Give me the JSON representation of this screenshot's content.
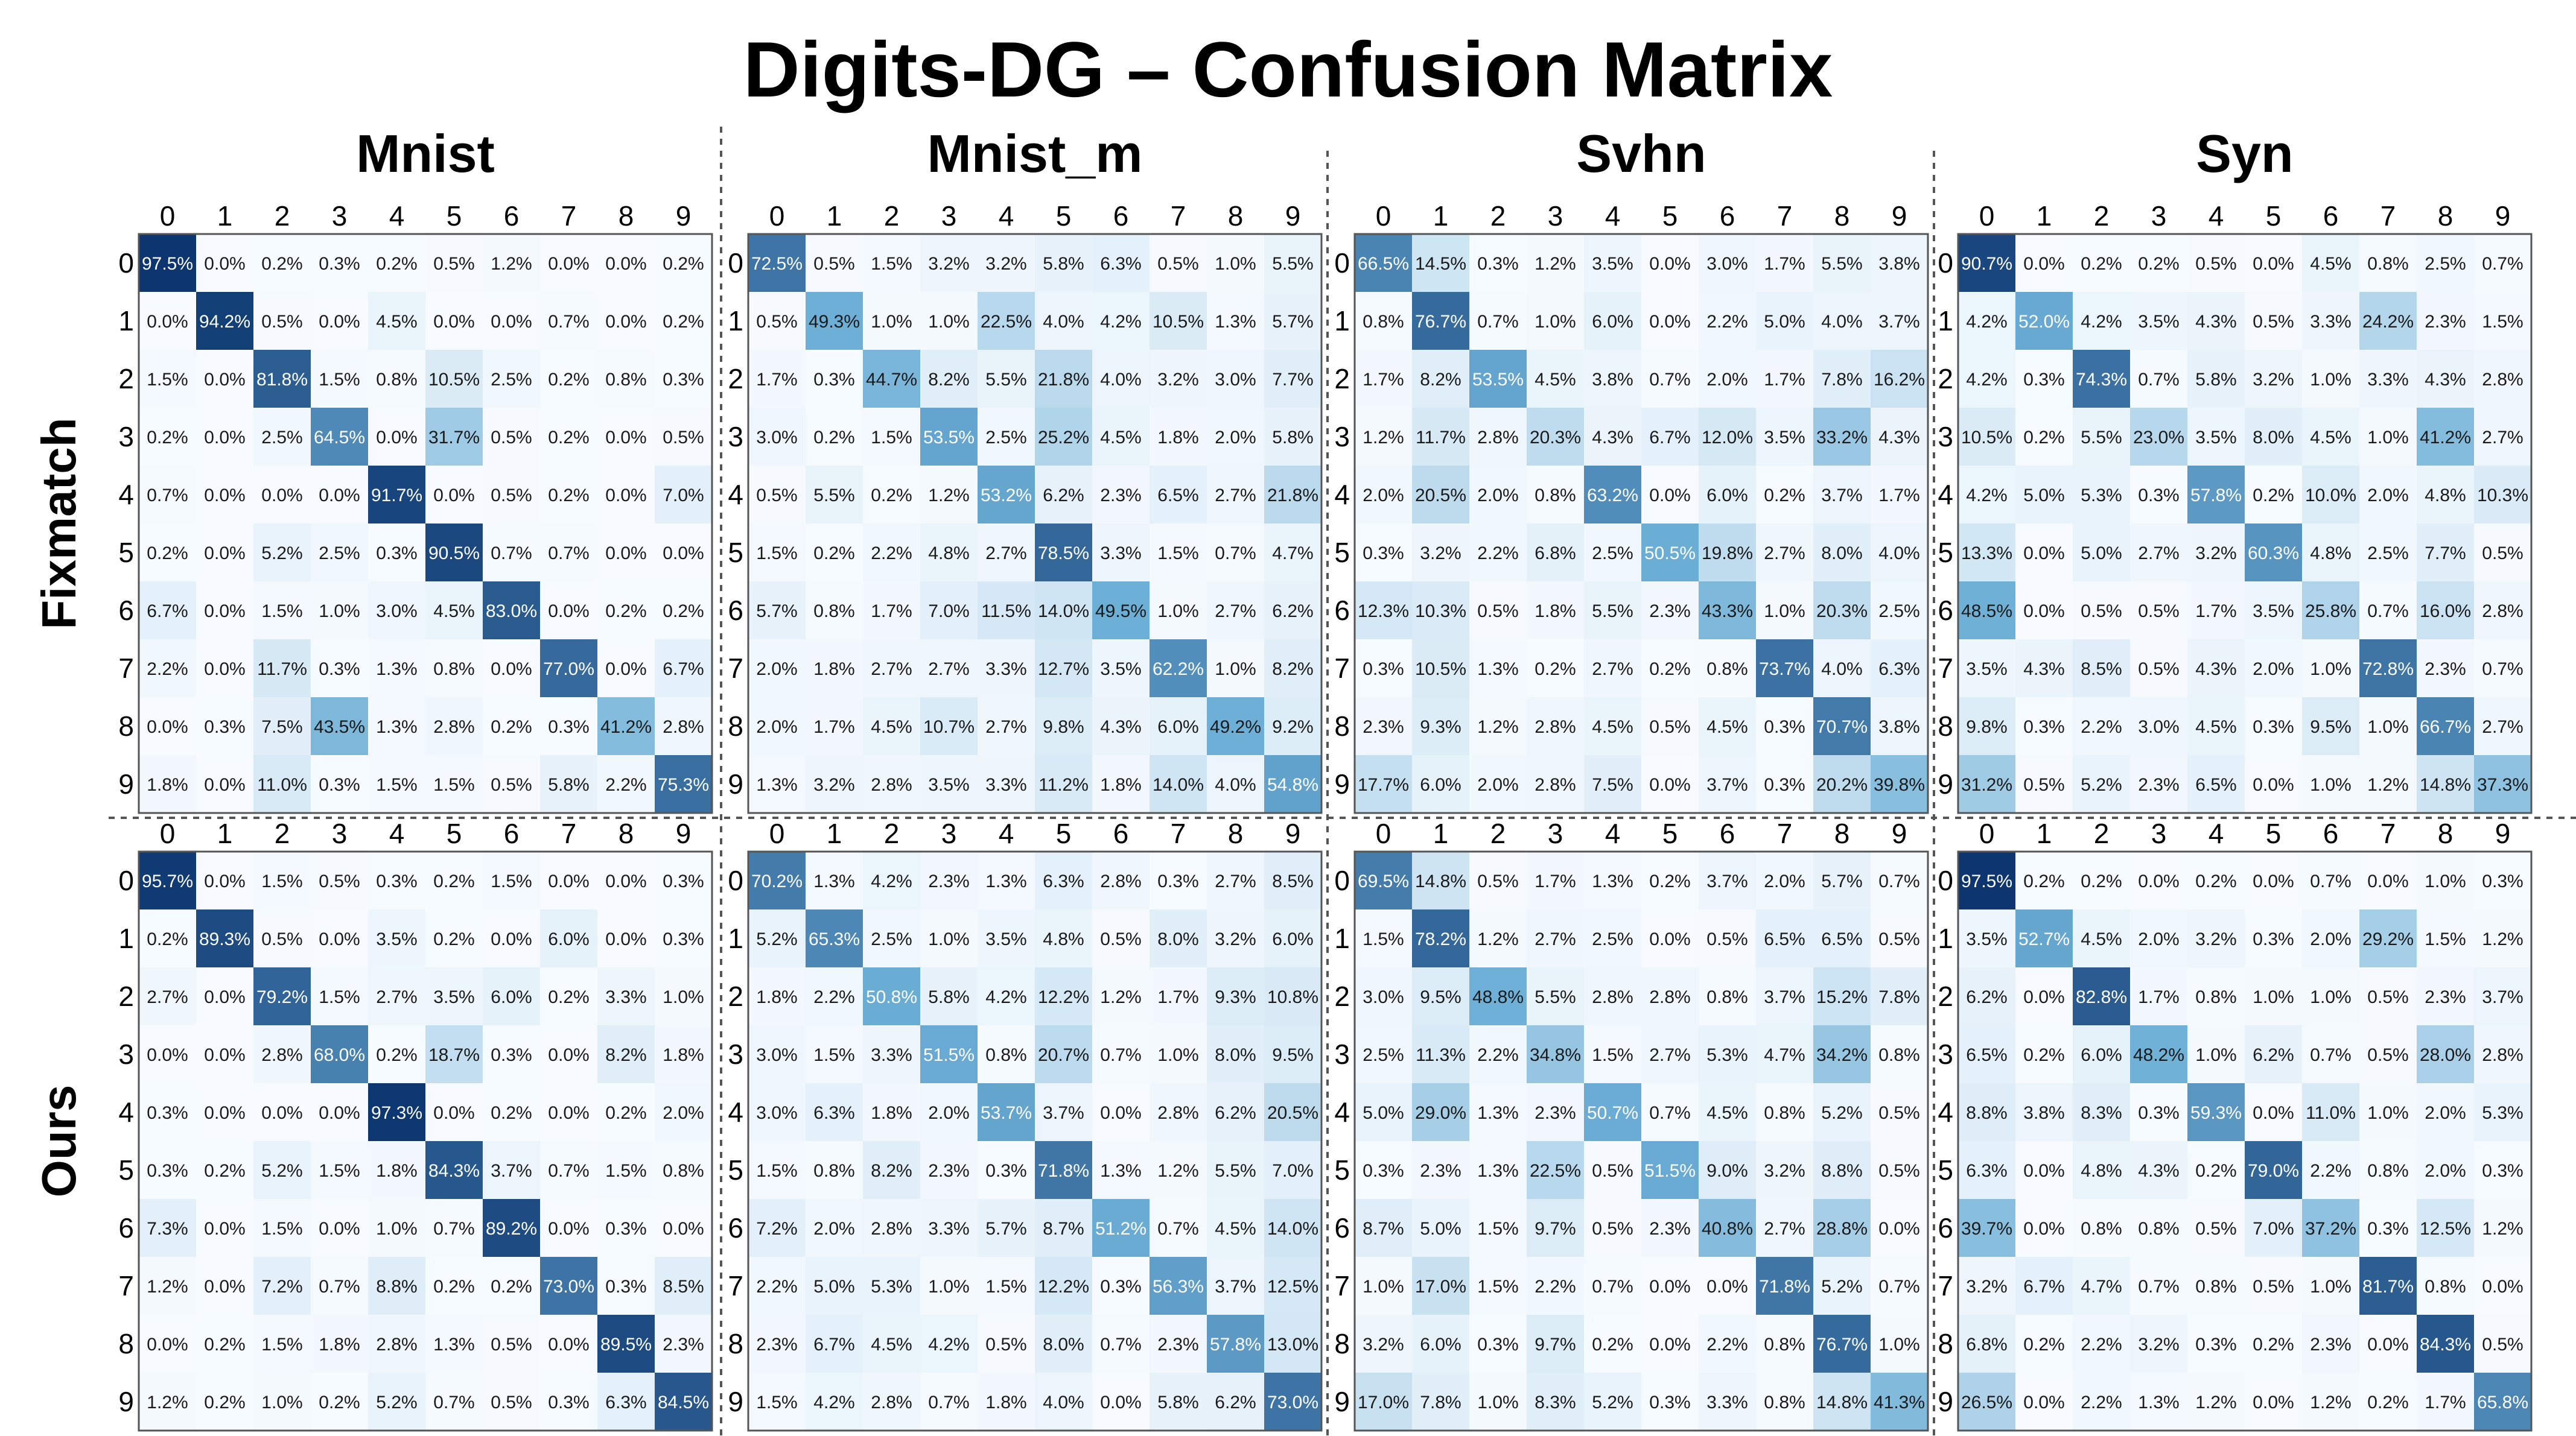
{
  "title": "Digits-DG  –  Confusion Matrix",
  "colormap": {
    "low": "#f7fbff",
    "mid": "#6baed6",
    "high": "#08306b"
  },
  "tick_labels": [
    "0",
    "1",
    "2",
    "3",
    "4",
    "5",
    "6",
    "7",
    "8",
    "9"
  ],
  "row_labels": [
    "Fixmatch",
    "Ours"
  ],
  "column_titles": [
    "Mnist",
    "Mnist_m",
    "Svhn",
    "Syn"
  ],
  "chart_data": [
    {
      "type": "heatmap",
      "method": "Fixmatch",
      "domain": "Mnist",
      "xticks": [
        "0",
        "1",
        "2",
        "3",
        "4",
        "5",
        "6",
        "7",
        "8",
        "9"
      ],
      "yticks": [
        "0",
        "1",
        "2",
        "3",
        "4",
        "5",
        "6",
        "7",
        "8",
        "9"
      ],
      "values": [
        [
          "97.5%",
          "0.0%",
          "0.2%",
          "0.3%",
          "0.2%",
          "0.5%",
          "1.2%",
          "0.0%",
          "0.0%",
          "0.2%"
        ],
        [
          "0.0%",
          "94.2%",
          "0.5%",
          "0.0%",
          "4.5%",
          "0.0%",
          "0.0%",
          "0.7%",
          "0.0%",
          "0.2%"
        ],
        [
          "1.5%",
          "0.0%",
          "81.8%",
          "1.5%",
          "0.8%",
          "10.5%",
          "2.5%",
          "0.2%",
          "0.8%",
          "0.3%"
        ],
        [
          "0.2%",
          "0.0%",
          "2.5%",
          "64.5%",
          "0.0%",
          "31.7%",
          "0.5%",
          "0.2%",
          "0.0%",
          "0.5%"
        ],
        [
          "0.7%",
          "0.0%",
          "0.0%",
          "0.0%",
          "91.7%",
          "0.0%",
          "0.5%",
          "0.2%",
          "0.0%",
          "7.0%"
        ],
        [
          "0.2%",
          "0.0%",
          "5.2%",
          "2.5%",
          "0.3%",
          "90.5%",
          "0.7%",
          "0.7%",
          "0.0%",
          "0.0%"
        ],
        [
          "6.7%",
          "0.0%",
          "1.5%",
          "1.0%",
          "3.0%",
          "4.5%",
          "83.0%",
          "0.0%",
          "0.2%",
          "0.2%"
        ],
        [
          "2.2%",
          "0.0%",
          "11.7%",
          "0.3%",
          "1.3%",
          "0.8%",
          "0.0%",
          "77.0%",
          "0.0%",
          "6.7%"
        ],
        [
          "0.0%",
          "0.3%",
          "7.5%",
          "43.5%",
          "1.3%",
          "2.8%",
          "0.2%",
          "0.3%",
          "41.2%",
          "2.8%"
        ],
        [
          "1.8%",
          "0.0%",
          "11.0%",
          "0.3%",
          "1.5%",
          "1.5%",
          "0.5%",
          "5.8%",
          "2.2%",
          "75.3%"
        ]
      ]
    },
    {
      "type": "heatmap",
      "method": "Fixmatch",
      "domain": "Mnist_m",
      "xticks": [
        "0",
        "1",
        "2",
        "3",
        "4",
        "5",
        "6",
        "7",
        "8",
        "9"
      ],
      "yticks": [
        "0",
        "1",
        "2",
        "3",
        "4",
        "5",
        "6",
        "7",
        "8",
        "9"
      ],
      "values": [
        [
          "72.5%",
          "0.5%",
          "1.5%",
          "3.2%",
          "3.2%",
          "5.8%",
          "6.3%",
          "0.5%",
          "1.0%",
          "5.5%"
        ],
        [
          "0.5%",
          "49.3%",
          "1.0%",
          "1.0%",
          "22.5%",
          "4.0%",
          "4.2%",
          "10.5%",
          "1.3%",
          "5.7%"
        ],
        [
          "1.7%",
          "0.3%",
          "44.7%",
          "8.2%",
          "5.5%",
          "21.8%",
          "4.0%",
          "3.2%",
          "3.0%",
          "7.7%"
        ],
        [
          "3.0%",
          "0.2%",
          "1.5%",
          "53.5%",
          "2.5%",
          "25.2%",
          "4.5%",
          "1.8%",
          "2.0%",
          "5.8%"
        ],
        [
          "0.5%",
          "5.5%",
          "0.2%",
          "1.2%",
          "53.2%",
          "6.2%",
          "2.3%",
          "6.5%",
          "2.7%",
          "21.8%"
        ],
        [
          "1.5%",
          "0.2%",
          "2.2%",
          "4.8%",
          "2.7%",
          "78.5%",
          "3.3%",
          "1.5%",
          "0.7%",
          "4.7%"
        ],
        [
          "5.7%",
          "0.8%",
          "1.7%",
          "7.0%",
          "11.5%",
          "14.0%",
          "49.5%",
          "1.0%",
          "2.7%",
          "6.2%"
        ],
        [
          "2.0%",
          "1.8%",
          "2.7%",
          "2.7%",
          "3.3%",
          "12.7%",
          "3.5%",
          "62.2%",
          "1.0%",
          "8.2%"
        ],
        [
          "2.0%",
          "1.7%",
          "4.5%",
          "10.7%",
          "2.7%",
          "9.8%",
          "4.3%",
          "6.0%",
          "49.2%",
          "9.2%"
        ],
        [
          "1.3%",
          "3.2%",
          "2.8%",
          "3.5%",
          "3.3%",
          "11.2%",
          "1.8%",
          "14.0%",
          "4.0%",
          "54.8%"
        ]
      ]
    },
    {
      "type": "heatmap",
      "method": "Fixmatch",
      "domain": "Svhn",
      "xticks": [
        "0",
        "1",
        "2",
        "3",
        "4",
        "5",
        "6",
        "7",
        "8",
        "9"
      ],
      "yticks": [
        "0",
        "1",
        "2",
        "3",
        "4",
        "5",
        "6",
        "7",
        "8",
        "9"
      ],
      "values": [
        [
          "66.5%",
          "14.5%",
          "0.3%",
          "1.2%",
          "3.5%",
          "0.0%",
          "3.0%",
          "1.7%",
          "5.5%",
          "3.8%"
        ],
        [
          "0.8%",
          "76.7%",
          "0.7%",
          "1.0%",
          "6.0%",
          "0.0%",
          "2.2%",
          "5.0%",
          "4.0%",
          "3.7%"
        ],
        [
          "1.7%",
          "8.2%",
          "53.5%",
          "4.5%",
          "3.8%",
          "0.7%",
          "2.0%",
          "1.7%",
          "7.8%",
          "16.2%"
        ],
        [
          "1.2%",
          "11.7%",
          "2.8%",
          "20.3%",
          "4.3%",
          "6.7%",
          "12.0%",
          "3.5%",
          "33.2%",
          "4.3%"
        ],
        [
          "2.0%",
          "20.5%",
          "2.0%",
          "0.8%",
          "63.2%",
          "0.0%",
          "6.0%",
          "0.2%",
          "3.7%",
          "1.7%"
        ],
        [
          "0.3%",
          "3.2%",
          "2.2%",
          "6.8%",
          "2.5%",
          "50.5%",
          "19.8%",
          "2.7%",
          "8.0%",
          "4.0%"
        ],
        [
          "12.3%",
          "10.3%",
          "0.5%",
          "1.8%",
          "5.5%",
          "2.3%",
          "43.3%",
          "1.0%",
          "20.3%",
          "2.5%"
        ],
        [
          "0.3%",
          "10.5%",
          "1.3%",
          "0.2%",
          "2.7%",
          "0.2%",
          "0.8%",
          "73.7%",
          "4.0%",
          "6.3%"
        ],
        [
          "2.3%",
          "9.3%",
          "1.2%",
          "2.8%",
          "4.5%",
          "0.5%",
          "4.5%",
          "0.3%",
          "70.7%",
          "3.8%"
        ],
        [
          "17.7%",
          "6.0%",
          "2.0%",
          "2.8%",
          "7.5%",
          "0.0%",
          "3.7%",
          "0.3%",
          "20.2%",
          "39.8%"
        ]
      ]
    },
    {
      "type": "heatmap",
      "method": "Fixmatch",
      "domain": "Syn",
      "xticks": [
        "0",
        "1",
        "2",
        "3",
        "4",
        "5",
        "6",
        "7",
        "8",
        "9"
      ],
      "yticks": [
        "0",
        "1",
        "2",
        "3",
        "4",
        "5",
        "6",
        "7",
        "8",
        "9"
      ],
      "values": [
        [
          "90.7%",
          "0.0%",
          "0.2%",
          "0.2%",
          "0.5%",
          "0.0%",
          "4.5%",
          "0.8%",
          "2.5%",
          "0.7%"
        ],
        [
          "4.2%",
          "52.0%",
          "4.2%",
          "3.5%",
          "4.3%",
          "0.5%",
          "3.3%",
          "24.2%",
          "2.3%",
          "1.5%"
        ],
        [
          "4.2%",
          "0.3%",
          "74.3%",
          "0.7%",
          "5.8%",
          "3.2%",
          "1.0%",
          "3.3%",
          "4.3%",
          "2.8%"
        ],
        [
          "10.5%",
          "0.2%",
          "5.5%",
          "23.0%",
          "3.5%",
          "8.0%",
          "4.5%",
          "1.0%",
          "41.2%",
          "2.7%"
        ],
        [
          "4.2%",
          "5.0%",
          "5.3%",
          "0.3%",
          "57.8%",
          "0.2%",
          "10.0%",
          "2.0%",
          "4.8%",
          "10.3%"
        ],
        [
          "13.3%",
          "0.0%",
          "5.0%",
          "2.7%",
          "3.2%",
          "60.3%",
          "4.8%",
          "2.5%",
          "7.7%",
          "0.5%"
        ],
        [
          "48.5%",
          "0.0%",
          "0.5%",
          "0.5%",
          "1.7%",
          "3.5%",
          "25.8%",
          "0.7%",
          "16.0%",
          "2.8%"
        ],
        [
          "3.5%",
          "4.3%",
          "8.5%",
          "0.5%",
          "4.3%",
          "2.0%",
          "1.0%",
          "72.8%",
          "2.3%",
          "0.7%"
        ],
        [
          "9.8%",
          "0.3%",
          "2.2%",
          "3.0%",
          "4.5%",
          "0.3%",
          "9.5%",
          "1.0%",
          "66.7%",
          "2.7%"
        ],
        [
          "31.2%",
          "0.5%",
          "5.2%",
          "2.3%",
          "6.5%",
          "0.0%",
          "1.0%",
          "1.2%",
          "14.8%",
          "37.3%"
        ]
      ]
    },
    {
      "type": "heatmap",
      "method": "Ours",
      "domain": "Mnist",
      "xticks": [
        "0",
        "1",
        "2",
        "3",
        "4",
        "5",
        "6",
        "7",
        "8",
        "9"
      ],
      "yticks": [
        "0",
        "1",
        "2",
        "3",
        "4",
        "5",
        "6",
        "7",
        "8",
        "9"
      ],
      "values": [
        [
          "95.7%",
          "0.0%",
          "1.5%",
          "0.5%",
          "0.3%",
          "0.2%",
          "1.5%",
          "0.0%",
          "0.0%",
          "0.3%"
        ],
        [
          "0.2%",
          "89.3%",
          "0.5%",
          "0.0%",
          "3.5%",
          "0.2%",
          "0.0%",
          "6.0%",
          "0.0%",
          "0.3%"
        ],
        [
          "2.7%",
          "0.0%",
          "79.2%",
          "1.5%",
          "2.7%",
          "3.5%",
          "6.0%",
          "0.2%",
          "3.3%",
          "1.0%"
        ],
        [
          "0.0%",
          "0.0%",
          "2.8%",
          "68.0%",
          "0.2%",
          "18.7%",
          "0.3%",
          "0.0%",
          "8.2%",
          "1.8%"
        ],
        [
          "0.3%",
          "0.0%",
          "0.0%",
          "0.0%",
          "97.3%",
          "0.0%",
          "0.2%",
          "0.0%",
          "0.2%",
          "2.0%"
        ],
        [
          "0.3%",
          "0.2%",
          "5.2%",
          "1.5%",
          "1.8%",
          "84.3%",
          "3.7%",
          "0.7%",
          "1.5%",
          "0.8%"
        ],
        [
          "7.3%",
          "0.0%",
          "1.5%",
          "0.0%",
          "1.0%",
          "0.7%",
          "89.2%",
          "0.0%",
          "0.3%",
          "0.0%"
        ],
        [
          "1.2%",
          "0.0%",
          "7.2%",
          "0.7%",
          "8.8%",
          "0.2%",
          "0.2%",
          "73.0%",
          "0.3%",
          "8.5%"
        ],
        [
          "0.0%",
          "0.2%",
          "1.5%",
          "1.8%",
          "2.8%",
          "1.3%",
          "0.5%",
          "0.0%",
          "89.5%",
          "2.3%"
        ],
        [
          "1.2%",
          "0.2%",
          "1.0%",
          "0.2%",
          "5.2%",
          "0.7%",
          "0.5%",
          "0.3%",
          "6.3%",
          "84.5%"
        ]
      ]
    },
    {
      "type": "heatmap",
      "method": "Ours",
      "domain": "Mnist_m",
      "xticks": [
        "0",
        "1",
        "2",
        "3",
        "4",
        "5",
        "6",
        "7",
        "8",
        "9"
      ],
      "yticks": [
        "0",
        "1",
        "2",
        "3",
        "4",
        "5",
        "6",
        "7",
        "8",
        "9"
      ],
      "values": [
        [
          "70.2%",
          "1.3%",
          "4.2%",
          "2.3%",
          "1.3%",
          "6.3%",
          "2.8%",
          "0.3%",
          "2.7%",
          "8.5%"
        ],
        [
          "5.2%",
          "65.3%",
          "2.5%",
          "1.0%",
          "3.5%",
          "4.8%",
          "0.5%",
          "8.0%",
          "3.2%",
          "6.0%"
        ],
        [
          "1.8%",
          "2.2%",
          "50.8%",
          "5.8%",
          "4.2%",
          "12.2%",
          "1.2%",
          "1.7%",
          "9.3%",
          "10.8%"
        ],
        [
          "3.0%",
          "1.5%",
          "3.3%",
          "51.5%",
          "0.8%",
          "20.7%",
          "0.7%",
          "1.0%",
          "8.0%",
          "9.5%"
        ],
        [
          "3.0%",
          "6.3%",
          "1.8%",
          "2.0%",
          "53.7%",
          "3.7%",
          "0.0%",
          "2.8%",
          "6.2%",
          "20.5%"
        ],
        [
          "1.5%",
          "0.8%",
          "8.2%",
          "2.3%",
          "0.3%",
          "71.8%",
          "1.3%",
          "1.2%",
          "5.5%",
          "7.0%"
        ],
        [
          "7.2%",
          "2.0%",
          "2.8%",
          "3.3%",
          "5.7%",
          "8.7%",
          "51.2%",
          "0.7%",
          "4.5%",
          "14.0%"
        ],
        [
          "2.2%",
          "5.0%",
          "5.3%",
          "1.0%",
          "1.5%",
          "12.2%",
          "0.3%",
          "56.3%",
          "3.7%",
          "12.5%"
        ],
        [
          "2.3%",
          "6.7%",
          "4.5%",
          "4.2%",
          "0.5%",
          "8.0%",
          "0.7%",
          "2.3%",
          "57.8%",
          "13.0%"
        ],
        [
          "1.5%",
          "4.2%",
          "2.8%",
          "0.7%",
          "1.8%",
          "4.0%",
          "0.0%",
          "5.8%",
          "6.2%",
          "73.0%"
        ]
      ]
    },
    {
      "type": "heatmap",
      "method": "Ours",
      "domain": "Svhn",
      "xticks": [
        "0",
        "1",
        "2",
        "3",
        "4",
        "5",
        "6",
        "7",
        "8",
        "9"
      ],
      "yticks": [
        "0",
        "1",
        "2",
        "3",
        "4",
        "5",
        "6",
        "7",
        "8",
        "9"
      ],
      "values": [
        [
          "69.5%",
          "14.8%",
          "0.5%",
          "1.7%",
          "1.3%",
          "0.2%",
          "3.7%",
          "2.0%",
          "5.7%",
          "0.7%"
        ],
        [
          "1.5%",
          "78.2%",
          "1.2%",
          "2.7%",
          "2.5%",
          "0.0%",
          "0.5%",
          "6.5%",
          "6.5%",
          "0.5%"
        ],
        [
          "3.0%",
          "9.5%",
          "48.8%",
          "5.5%",
          "2.8%",
          "2.8%",
          "0.8%",
          "3.7%",
          "15.2%",
          "7.8%"
        ],
        [
          "2.5%",
          "11.3%",
          "2.2%",
          "34.8%",
          "1.5%",
          "2.7%",
          "5.3%",
          "4.7%",
          "34.2%",
          "0.8%"
        ],
        [
          "5.0%",
          "29.0%",
          "1.3%",
          "2.3%",
          "50.7%",
          "0.7%",
          "4.5%",
          "0.8%",
          "5.2%",
          "0.5%"
        ],
        [
          "0.3%",
          "2.3%",
          "1.3%",
          "22.5%",
          "0.5%",
          "51.5%",
          "9.0%",
          "3.2%",
          "8.8%",
          "0.5%"
        ],
        [
          "8.7%",
          "5.0%",
          "1.5%",
          "9.7%",
          "0.5%",
          "2.3%",
          "40.8%",
          "2.7%",
          "28.8%",
          "0.0%"
        ],
        [
          "1.0%",
          "17.0%",
          "1.5%",
          "2.2%",
          "0.7%",
          "0.0%",
          "0.0%",
          "71.8%",
          "5.2%",
          "0.7%"
        ],
        [
          "3.2%",
          "6.0%",
          "0.3%",
          "9.7%",
          "0.2%",
          "0.0%",
          "2.2%",
          "0.8%",
          "76.7%",
          "1.0%"
        ],
        [
          "17.0%",
          "7.8%",
          "1.0%",
          "8.3%",
          "5.2%",
          "0.3%",
          "3.3%",
          "0.8%",
          "14.8%",
          "41.3%"
        ]
      ]
    },
    {
      "type": "heatmap",
      "method": "Ours",
      "domain": "Syn",
      "xticks": [
        "0",
        "1",
        "2",
        "3",
        "4",
        "5",
        "6",
        "7",
        "8",
        "9"
      ],
      "yticks": [
        "0",
        "1",
        "2",
        "3",
        "4",
        "5",
        "6",
        "7",
        "8",
        "9"
      ],
      "values": [
        [
          "97.5%",
          "0.2%",
          "0.2%",
          "0.0%",
          "0.2%",
          "0.0%",
          "0.7%",
          "0.0%",
          "1.0%",
          "0.3%"
        ],
        [
          "3.5%",
          "52.7%",
          "4.5%",
          "2.0%",
          "3.2%",
          "0.3%",
          "2.0%",
          "29.2%",
          "1.5%",
          "1.2%"
        ],
        [
          "6.2%",
          "0.0%",
          "82.8%",
          "1.7%",
          "0.8%",
          "1.0%",
          "1.0%",
          "0.5%",
          "2.3%",
          "3.7%"
        ],
        [
          "6.5%",
          "0.2%",
          "6.0%",
          "48.2%",
          "1.0%",
          "6.2%",
          "0.7%",
          "0.5%",
          "28.0%",
          "2.8%"
        ],
        [
          "8.8%",
          "3.8%",
          "8.3%",
          "0.3%",
          "59.3%",
          "0.0%",
          "11.0%",
          "1.0%",
          "2.0%",
          "5.3%"
        ],
        [
          "6.3%",
          "0.0%",
          "4.8%",
          "4.3%",
          "0.2%",
          "79.0%",
          "2.2%",
          "0.8%",
          "2.0%",
          "0.3%"
        ],
        [
          "39.7%",
          "0.0%",
          "0.8%",
          "0.8%",
          "0.5%",
          "7.0%",
          "37.2%",
          "0.3%",
          "12.5%",
          "1.2%"
        ],
        [
          "3.2%",
          "6.7%",
          "4.7%",
          "0.7%",
          "0.8%",
          "0.5%",
          "1.0%",
          "81.7%",
          "0.8%",
          "0.0%"
        ],
        [
          "6.8%",
          "0.2%",
          "2.2%",
          "3.2%",
          "0.3%",
          "0.2%",
          "2.3%",
          "0.0%",
          "84.3%",
          "0.5%"
        ],
        [
          "26.5%",
          "0.0%",
          "2.2%",
          "1.3%",
          "1.2%",
          "0.0%",
          "1.2%",
          "0.2%",
          "1.7%",
          "65.8%"
        ]
      ]
    }
  ]
}
